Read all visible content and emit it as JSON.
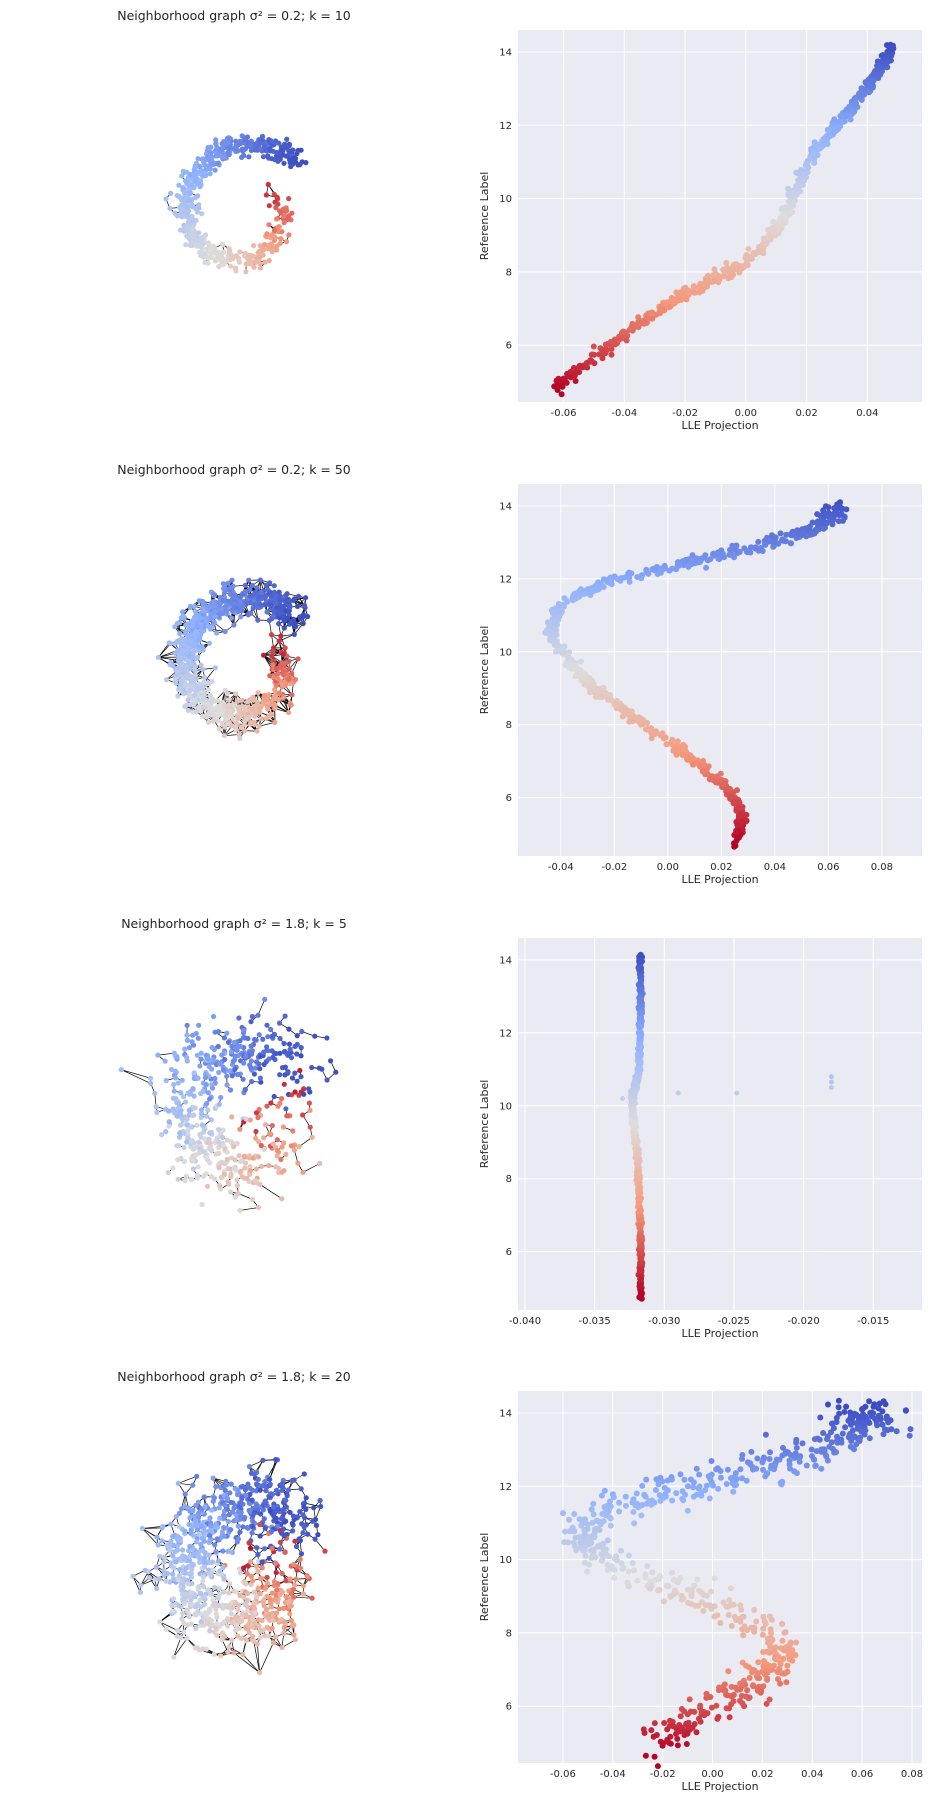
{
  "figure": {
    "rows": [
      {
        "graph_title": "Neighborhood graph σ² = 0.2; k = 10"
      },
      {
        "graph_title": "Neighborhood graph σ² = 0.2; k = 50"
      },
      {
        "graph_title": "Neighborhood graph σ² = 1.8; k = 5"
      },
      {
        "graph_title": "Neighborhood graph σ² = 1.8; k = 20"
      }
    ],
    "colors": {
      "panel_background": "#eaeaf2",
      "grid": "#ffffff",
      "graph_edges": "#000000",
      "colormap": "coolwarm (reversed: high label = blue, low label = red)"
    }
  },
  "chart_data": [
    {
      "type": "scatter",
      "xlabel": "LLE Projection",
      "ylabel": "Reference Label",
      "xlim": [
        -0.075,
        0.058
      ],
      "ylim": [
        4.45,
        14.6
      ],
      "xticks": [
        "-0.06",
        "-0.04",
        "-0.02",
        "0.00",
        "0.02",
        "0.04"
      ],
      "xtick_values": [
        -0.06,
        -0.04,
        -0.02,
        0.0,
        0.02,
        0.04
      ],
      "yticks": [
        "6",
        "8",
        "10",
        "12",
        "14"
      ],
      "ytick_values": [
        6,
        8,
        10,
        12,
        14
      ],
      "grid": true,
      "curve": [
        [
          -0.063,
          4.8
        ],
        [
          -0.05,
          5.7
        ],
        [
          -0.035,
          6.6
        ],
        [
          -0.02,
          7.4
        ],
        [
          -0.005,
          8.0
        ],
        [
          0.005,
          8.6
        ],
        [
          0.012,
          9.4
        ],
        [
          0.016,
          10.2
        ],
        [
          0.022,
          11.2
        ],
        [
          0.03,
          12.0
        ],
        [
          0.038,
          12.8
        ],
        [
          0.044,
          13.5
        ],
        [
          0.048,
          14.1
        ]
      ]
    },
    {
      "type": "scatter",
      "xlabel": "LLE Projection",
      "ylabel": "Reference Label",
      "xlim": [
        -0.056,
        0.095
      ],
      "ylim": [
        4.4,
        14.6
      ],
      "xticks": [
        "-0.04",
        "-0.02",
        "0.00",
        "0.02",
        "0.04",
        "0.06",
        "0.08"
      ],
      "xtick_values": [
        -0.04,
        -0.02,
        0.0,
        0.02,
        0.04,
        0.06,
        0.08
      ],
      "yticks": [
        "6",
        "8",
        "10",
        "12",
        "14"
      ],
      "ytick_values": [
        6,
        8,
        10,
        12,
        14
      ],
      "grid": true,
      "curve": [
        [
          0.025,
          4.8
        ],
        [
          0.028,
          5.5
        ],
        [
          0.022,
          6.3
        ],
        [
          0.01,
          7.0
        ],
        [
          -0.005,
          7.8
        ],
        [
          -0.02,
          8.6
        ],
        [
          -0.035,
          9.5
        ],
        [
          -0.044,
          10.5
        ],
        [
          -0.04,
          11.3
        ],
        [
          -0.02,
          12.0
        ],
        [
          0.005,
          12.4
        ],
        [
          0.03,
          12.8
        ],
        [
          0.05,
          13.2
        ],
        [
          0.06,
          13.6
        ],
        [
          0.065,
          14.0
        ]
      ]
    },
    {
      "type": "scatter",
      "xlabel": "LLE Projection",
      "ylabel": "Reference Label",
      "xlim": [
        -0.0405,
        -0.0115
      ],
      "ylim": [
        4.4,
        14.6
      ],
      "xticks": [
        "-0.040",
        "-0.035",
        "-0.030",
        "-0.025",
        "-0.020",
        "-0.015"
      ],
      "xtick_values": [
        -0.04,
        -0.035,
        -0.03,
        -0.025,
        -0.02,
        -0.015
      ],
      "yticks": [
        "6",
        "8",
        "10",
        "12",
        "14"
      ],
      "ytick_values": [
        6,
        8,
        10,
        12,
        14
      ],
      "grid": true,
      "curve": [
        [
          -0.0317,
          4.8
        ],
        [
          -0.0317,
          6.0
        ],
        [
          -0.0318,
          7.5
        ],
        [
          -0.0319,
          8.5
        ],
        [
          -0.0322,
          9.5
        ],
        [
          -0.0323,
          10.2
        ],
        [
          -0.0318,
          11.0
        ],
        [
          -0.0317,
          12.5
        ],
        [
          -0.0317,
          14.1
        ]
      ],
      "outliers": [
        [
          -0.029,
          10.35
        ],
        [
          -0.0248,
          10.35
        ],
        [
          -0.018,
          10.65
        ],
        [
          -0.018,
          10.8
        ],
        [
          -0.018,
          10.5
        ],
        [
          -0.033,
          10.2
        ]
      ]
    },
    {
      "type": "scatter",
      "xlabel": "LLE Projection",
      "ylabel": "Reference Label",
      "xlim": [
        -0.078,
        0.084
      ],
      "ylim": [
        4.45,
        14.6
      ],
      "xticks": [
        "-0.06",
        "-0.04",
        "-0.02",
        "0.00",
        "0.02",
        "0.04",
        "0.06",
        "0.08"
      ],
      "xtick_values": [
        -0.06,
        -0.04,
        -0.02,
        0.0,
        0.02,
        0.04,
        0.06,
        0.08
      ],
      "yticks": [
        "6",
        "8",
        "10",
        "12",
        "14"
      ],
      "ytick_values": [
        6,
        8,
        10,
        12,
        14
      ],
      "grid": true,
      "curve": [
        [
          -0.025,
          4.9
        ],
        [
          -0.01,
          5.6
        ],
        [
          0.005,
          6.2
        ],
        [
          0.02,
          6.8
        ],
        [
          0.03,
          7.4
        ],
        [
          0.02,
          8.2
        ],
        [
          0.0,
          8.8
        ],
        [
          -0.02,
          9.3
        ],
        [
          -0.045,
          10.0
        ],
        [
          -0.055,
          10.7
        ],
        [
          -0.04,
          11.3
        ],
        [
          -0.02,
          11.8
        ],
        [
          0.0,
          12.2
        ],
        [
          0.02,
          12.5
        ],
        [
          0.04,
          12.9
        ],
        [
          0.055,
          13.4
        ],
        [
          0.06,
          13.8
        ],
        [
          0.065,
          14.0
        ]
      ]
    }
  ]
}
